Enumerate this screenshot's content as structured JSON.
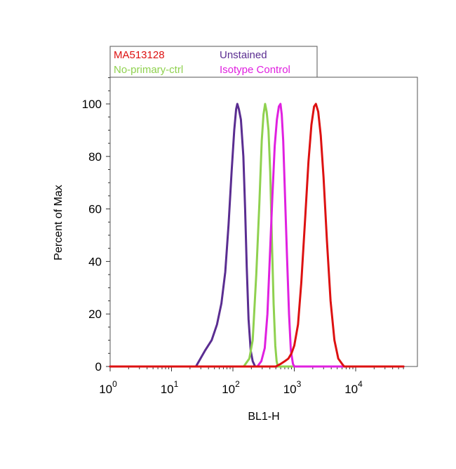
{
  "chart_data": {
    "type": "line",
    "title": "",
    "xlabel": "BL1-H",
    "ylabel": "Percent of Max",
    "xscale": "log",
    "xlim": [
      1,
      60000
    ],
    "ylim": [
      0,
      110
    ],
    "grid": false,
    "legend_position": "top-left, above plot",
    "x_ticks": [
      {
        "value": 1,
        "base": "10",
        "exp": "0"
      },
      {
        "value": 10,
        "base": "10",
        "exp": "1"
      },
      {
        "value": 100,
        "base": "10",
        "exp": "2"
      },
      {
        "value": 1000,
        "base": "10",
        "exp": "3"
      },
      {
        "value": 10000,
        "base": "10",
        "exp": "4"
      }
    ],
    "y_ticks": [
      {
        "value": 0,
        "label": "0"
      },
      {
        "value": 20,
        "label": "20"
      },
      {
        "value": 40,
        "label": "40"
      },
      {
        "value": 60,
        "label": "60"
      },
      {
        "value": 80,
        "label": "80"
      },
      {
        "value": 100,
        "label": "100"
      }
    ],
    "series": [
      {
        "name": "Unstained",
        "color": "#5a2d91",
        "points": [
          [
            1,
            0
          ],
          [
            25,
            0
          ],
          [
            28,
            2
          ],
          [
            35,
            6
          ],
          [
            45,
            10
          ],
          [
            55,
            16
          ],
          [
            65,
            24
          ],
          [
            75,
            36
          ],
          [
            85,
            54
          ],
          [
            95,
            74
          ],
          [
            105,
            90
          ],
          [
            113,
            98
          ],
          [
            118,
            100
          ],
          [
            125,
            98
          ],
          [
            135,
            94
          ],
          [
            148,
            80
          ],
          [
            158,
            60
          ],
          [
            168,
            38
          ],
          [
            180,
            18
          ],
          [
            195,
            6
          ],
          [
            210,
            2
          ],
          [
            230,
            0
          ],
          [
            60000,
            0
          ]
        ]
      },
      {
        "name": "No-primary-ctrl",
        "color": "#8fd14f",
        "points": [
          [
            1,
            0
          ],
          [
            150,
            0
          ],
          [
            185,
            3
          ],
          [
            210,
            10
          ],
          [
            240,
            35
          ],
          [
            270,
            62
          ],
          [
            295,
            86
          ],
          [
            315,
            96
          ],
          [
            335,
            100
          ],
          [
            355,
            97
          ],
          [
            380,
            90
          ],
          [
            405,
            74
          ],
          [
            430,
            50
          ],
          [
            460,
            24
          ],
          [
            490,
            8
          ],
          [
            515,
            2
          ],
          [
            540,
            0
          ],
          [
            60000,
            0
          ]
        ]
      },
      {
        "name": "Isotype Control",
        "color": "#e020e0",
        "points": [
          [
            1,
            0
          ],
          [
            250,
            0
          ],
          [
            290,
            2
          ],
          [
            330,
            7
          ],
          [
            365,
            20
          ],
          [
            400,
            42
          ],
          [
            440,
            65
          ],
          [
            480,
            84
          ],
          [
            520,
            94
          ],
          [
            560,
            99
          ],
          [
            595,
            100
          ],
          [
            625,
            96
          ],
          [
            660,
            86
          ],
          [
            700,
            68
          ],
          [
            760,
            42
          ],
          [
            820,
            20
          ],
          [
            880,
            6
          ],
          [
            950,
            1
          ],
          [
            1000,
            0
          ],
          [
            60000,
            0
          ]
        ]
      },
      {
        "name": "MA513128",
        "color": "#dd1111",
        "points": [
          [
            1,
            0
          ],
          [
            500,
            0
          ],
          [
            600,
            1
          ],
          [
            700,
            2
          ],
          [
            800,
            3
          ],
          [
            900,
            5
          ],
          [
            1000,
            8
          ],
          [
            1150,
            16
          ],
          [
            1300,
            32
          ],
          [
            1500,
            56
          ],
          [
            1700,
            78
          ],
          [
            1900,
            92
          ],
          [
            2100,
            99
          ],
          [
            2250,
            100
          ],
          [
            2450,
            97
          ],
          [
            2700,
            88
          ],
          [
            3000,
            72
          ],
          [
            3400,
            48
          ],
          [
            3900,
            25
          ],
          [
            4500,
            10
          ],
          [
            5200,
            3
          ],
          [
            6000,
            1
          ],
          [
            6500,
            0
          ],
          [
            60000,
            0
          ]
        ]
      }
    ],
    "legend": [
      {
        "label": "MA513128",
        "color": "#dd1111"
      },
      {
        "label": "Unstained",
        "color": "#5a2d91"
      },
      {
        "label": "No-primary-ctrl",
        "color": "#8fd14f"
      },
      {
        "label": "Isotype Control",
        "color": "#e020e0"
      }
    ]
  }
}
